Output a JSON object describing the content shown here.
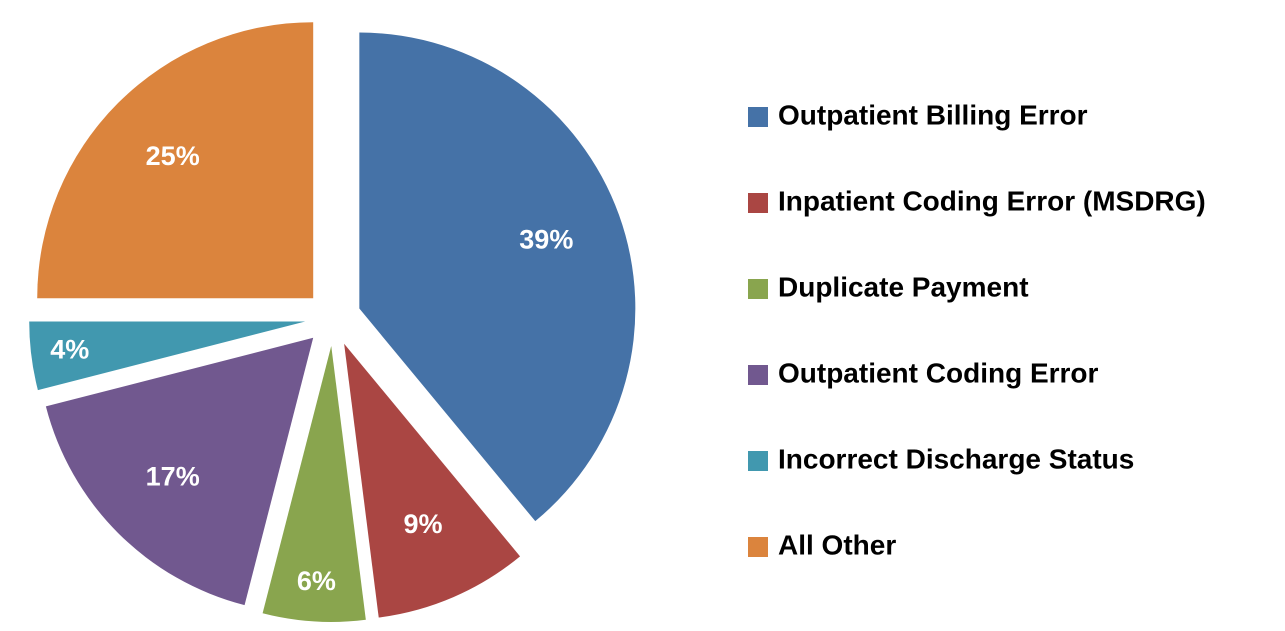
{
  "chart_data": {
    "type": "pie",
    "categories": [
      "Outpatient Billing Error",
      "Inpatient Coding Error (MSDRG)",
      "Duplicate Payment",
      "Outpatient Coding Error",
      "Incorrect Discharge Status",
      "All Other"
    ],
    "values": [
      39,
      9,
      6,
      17,
      4,
      25
    ],
    "value_labels": [
      "39%",
      "9%",
      "6%",
      "17%",
      "4%",
      "25%"
    ],
    "colors": [
      "#4572a7",
      "#aa4643",
      "#89a54e",
      "#71588f",
      "#4198af",
      "#db843d"
    ],
    "legend": "right"
  }
}
